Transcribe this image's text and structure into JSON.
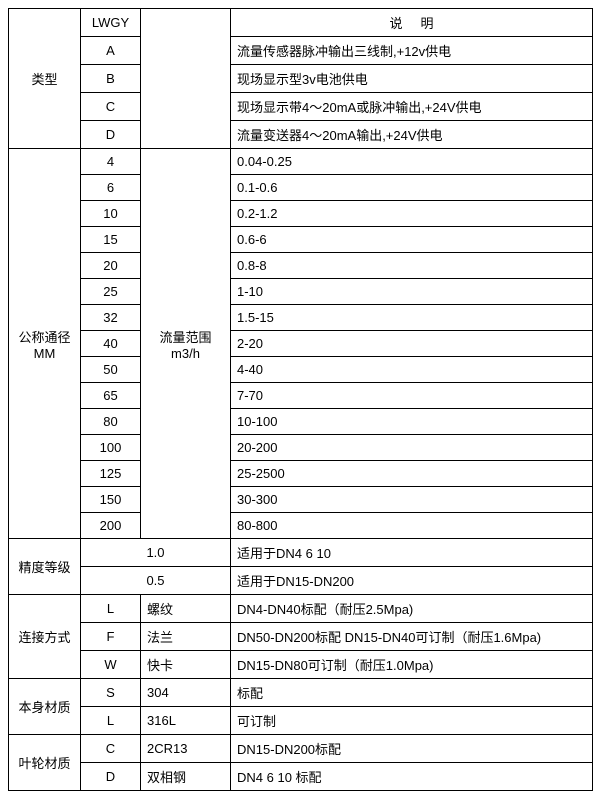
{
  "header": {
    "lwgy": "LWGY",
    "desc": "说明"
  },
  "type": {
    "label": "类型",
    "rows": [
      {
        "code": "A",
        "desc": "流量传感器脉冲输出三线制,+12v供电"
      },
      {
        "code": "B",
        "desc": "现场显示型3v电池供电"
      },
      {
        "code": "C",
        "desc": "现场显示带4～20mA或脉冲输出,+24V供电"
      },
      {
        "code": "D",
        "desc": "流量变送器4～20mA输出,+24V供电"
      }
    ]
  },
  "dn": {
    "label1": "公称通径",
    "label2": "MM",
    "range1": "流量范围",
    "range2": "m3/h",
    "rows": [
      {
        "dn": "4",
        "val": "0.04-0.25"
      },
      {
        "dn": "6",
        "val": "0.1-0.6"
      },
      {
        "dn": "10",
        "val": "0.2-1.2"
      },
      {
        "dn": "15",
        "val": "0.6-6"
      },
      {
        "dn": "20",
        "val": "0.8-8"
      },
      {
        "dn": "25",
        "val": "1-10"
      },
      {
        "dn": "32",
        "val": "1.5-15"
      },
      {
        "dn": "40",
        "val": "2-20"
      },
      {
        "dn": "50",
        "val": "4-40"
      },
      {
        "dn": "65",
        "val": "7-70"
      },
      {
        "dn": "80",
        "val": "10-100"
      },
      {
        "dn": "100",
        "val": "20-200"
      },
      {
        "dn": "125",
        "val": "25-2500"
      },
      {
        "dn": "150",
        "val": "30-300"
      },
      {
        "dn": "200",
        "val": "80-800"
      }
    ]
  },
  "accuracy": {
    "label": "精度等级",
    "rows": [
      {
        "grade": "1.0",
        "desc": "适用于DN4 6 10"
      },
      {
        "grade": "0.5",
        "desc": "适用于DN15-DN200"
      }
    ]
  },
  "conn": {
    "label": "连接方式",
    "rows": [
      {
        "code": "L",
        "name": "螺纹",
        "desc": "DN4-DN40标配（耐压2.5Mpa)"
      },
      {
        "code": "F",
        "name": "法兰",
        "desc": "DN50-DN200标配 DN15-DN40可订制（耐压1.6Mpa)"
      },
      {
        "code": "W",
        "name": "快卡",
        "desc": "DN15-DN80可订制（耐压1.0Mpa)"
      }
    ]
  },
  "body": {
    "label": "本身材质",
    "rows": [
      {
        "code": "S",
        "name": "304",
        "desc": "标配"
      },
      {
        "code": "L",
        "name": "316L",
        "desc": "可订制"
      }
    ]
  },
  "impeller": {
    "label": "叶轮材质",
    "rows": [
      {
        "code": "C",
        "name": "2CR13",
        "desc": "DN15-DN200标配"
      },
      {
        "code": "D",
        "name": "双相钢",
        "desc": "DN4 6 10 标配"
      }
    ]
  }
}
